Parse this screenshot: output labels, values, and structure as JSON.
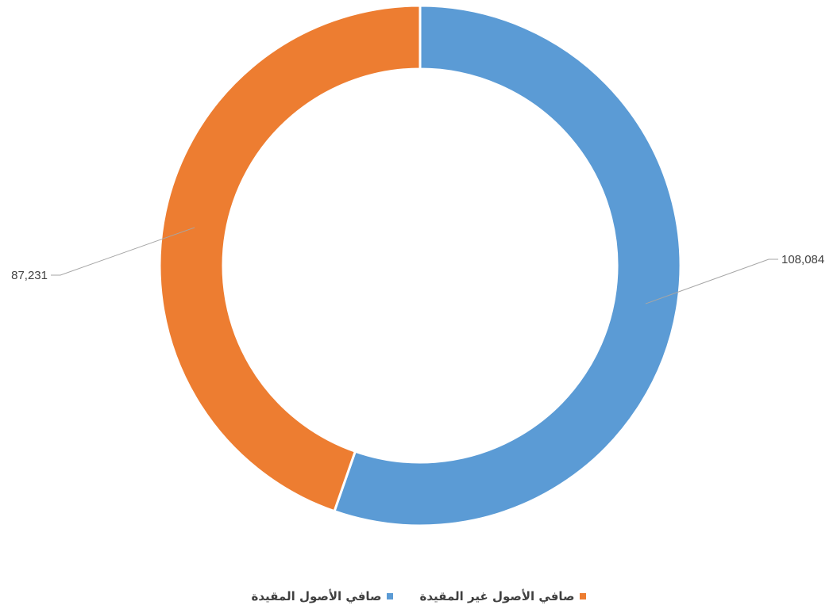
{
  "chart_data": {
    "type": "pie",
    "donut": true,
    "series": [
      {
        "name": "صافي الأصول المقيدة",
        "value": 108084,
        "label": "108,084",
        "color": "#5B9BD5"
      },
      {
        "name": "صافي الأصول غير المقيدة",
        "value": 87231,
        "label": "87,231",
        "color": "#ED7D31"
      }
    ],
    "legend_position": "bottom"
  },
  "legend": {
    "items": [
      {
        "label": "صافي الأصول غير المقيدة",
        "color": "#ED7D31"
      },
      {
        "label": "صافي الأصول المقيدة",
        "color": "#5B9BD5"
      }
    ]
  }
}
